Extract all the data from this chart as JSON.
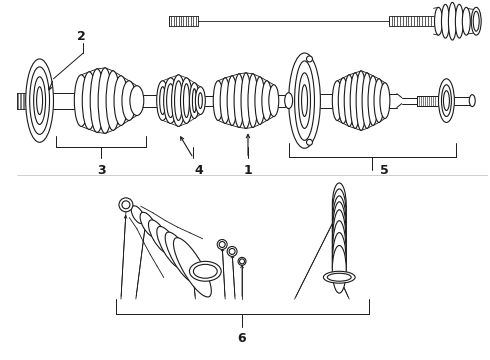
{
  "background_color": "#ffffff",
  "line_color": "#1a1a1a",
  "fig_width": 4.9,
  "fig_height": 3.6,
  "dpi": 100,
  "label_fontsize": 9,
  "label_fontweight": "bold"
}
